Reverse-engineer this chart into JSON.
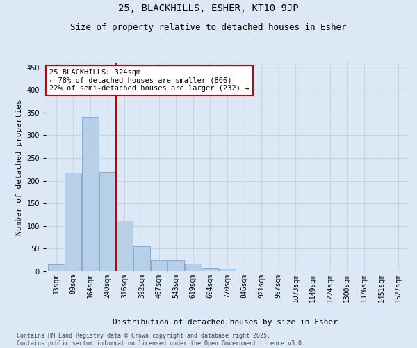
{
  "title1": "25, BLACKHILLS, ESHER, KT10 9JP",
  "title2": "Size of property relative to detached houses in Esher",
  "xlabel": "Distribution of detached houses by size in Esher",
  "ylabel": "Number of detached properties",
  "categories": [
    "13sqm",
    "89sqm",
    "164sqm",
    "240sqm",
    "316sqm",
    "392sqm",
    "467sqm",
    "543sqm",
    "619sqm",
    "694sqm",
    "770sqm",
    "846sqm",
    "921sqm",
    "997sqm",
    "1073sqm",
    "1149sqm",
    "1224sqm",
    "1300sqm",
    "1376sqm",
    "1451sqm",
    "1527sqm"
  ],
  "values": [
    15,
    217,
    340,
    220,
    112,
    55,
    25,
    25,
    17,
    8,
    6,
    0,
    0,
    1,
    0,
    0,
    2,
    0,
    0,
    1,
    2
  ],
  "bar_color": "#b8cfe8",
  "bar_edge_color": "#6699cc",
  "grid_color": "#c5d5e5",
  "bg_color": "#dce8f5",
  "fig_bg_color": "#dce8f5",
  "annotation_line1": "25 BLACKHILLS: 324sqm",
  "annotation_line2": "← 78% of detached houses are smaller (806)",
  "annotation_line3": "22% of semi-detached houses are larger (232) →",
  "annotation_box_color": "#ffffff",
  "annotation_box_edge": "#cc0000",
  "vline_color": "#cc0000",
  "vline_x": 3.5,
  "ylim": [
    0,
    460
  ],
  "yticks": [
    0,
    50,
    100,
    150,
    200,
    250,
    300,
    350,
    400,
    450
  ],
  "footnote": "Contains HM Land Registry data © Crown copyright and database right 2025.\nContains public sector information licensed under the Open Government Licence v3.0.",
  "title_fontsize": 10,
  "subtitle_fontsize": 9,
  "axis_label_fontsize": 8,
  "tick_fontsize": 7,
  "annotation_fontsize": 7.5,
  "footnote_fontsize": 6
}
